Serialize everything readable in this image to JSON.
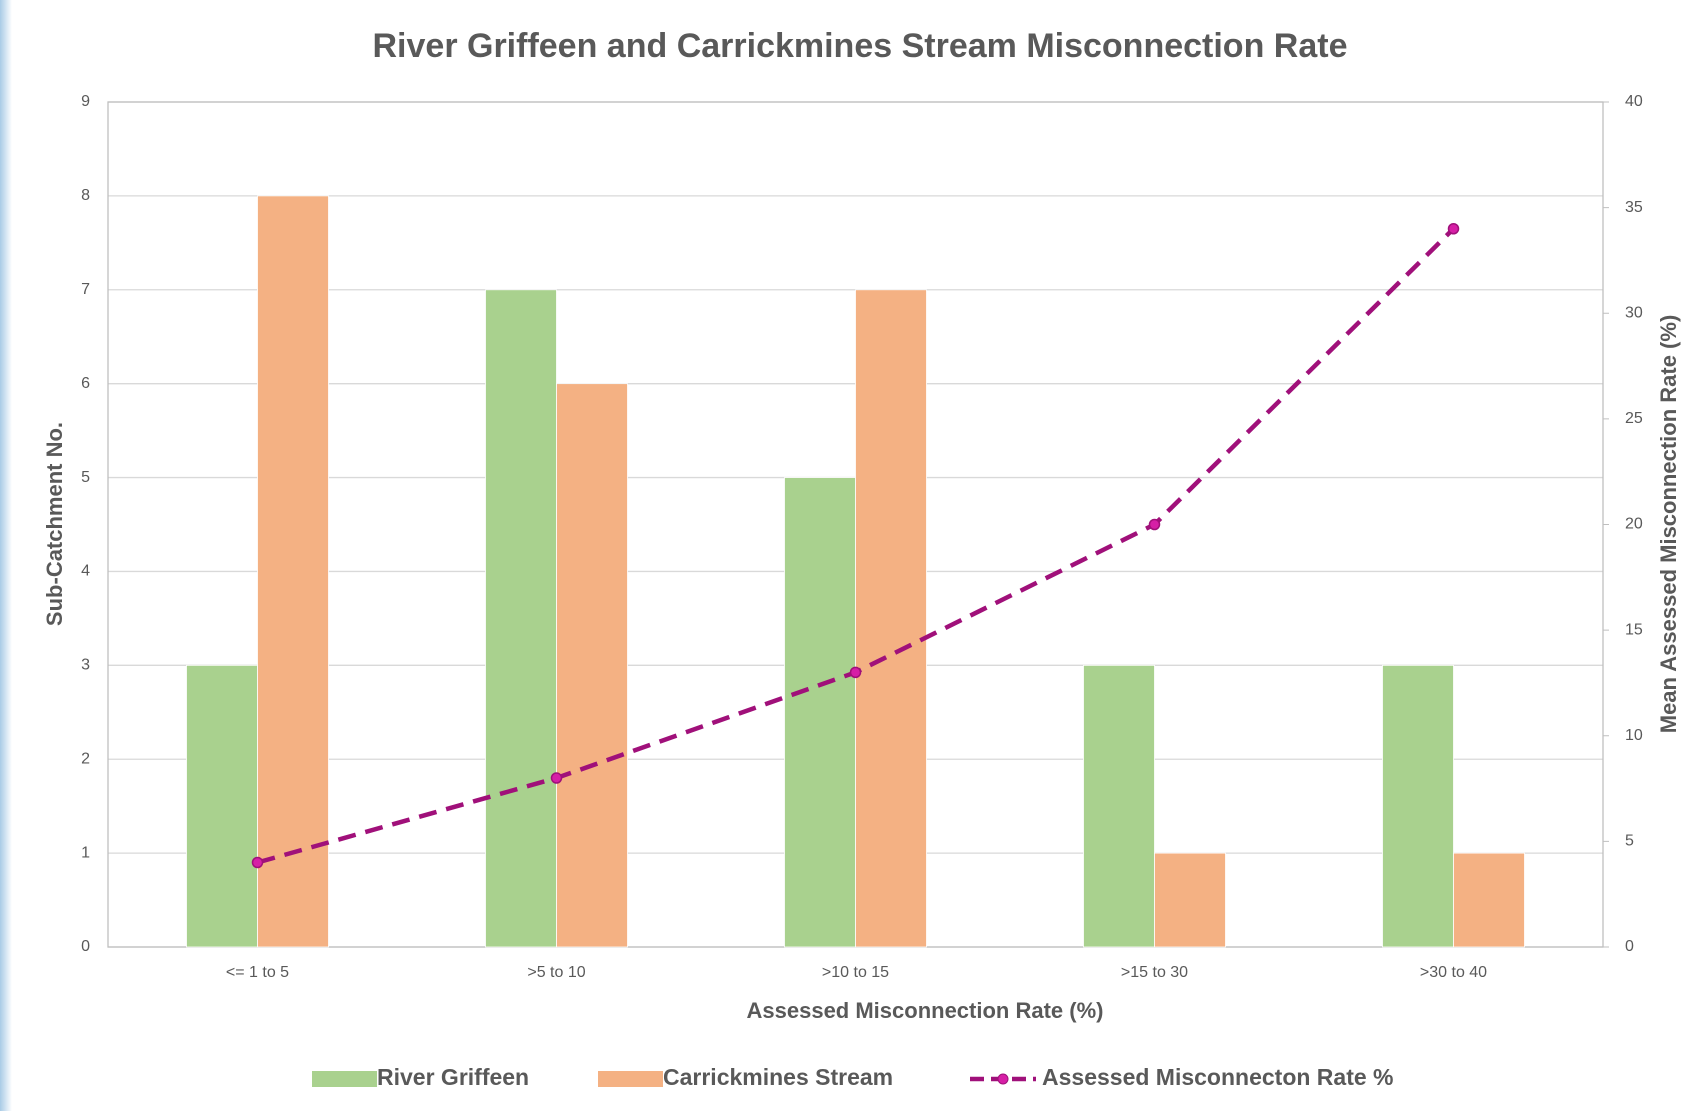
{
  "chart_data": {
    "type": "bar",
    "title": "River Griffeen and Carrickmines Stream Misconnection Rate",
    "x_label": "Assessed Misconnection Rate (%)",
    "y_label": "Sub-Catchment No.",
    "y2_label": "Mean Assessed Misconnection Rate  (%)",
    "categories": [
      "<= 1 to 5",
      ">5 to 10",
      ">10 to 15",
      ">15 to 30",
      ">30 to 40"
    ],
    "series": [
      {
        "name": "River Griffeen",
        "color": "#a9d18e",
        "values": [
          3,
          7,
          5,
          3,
          3
        ]
      },
      {
        "name": "Carrickmines Stream",
        "color": "#f4b183",
        "values": [
          8,
          6,
          7,
          1,
          1
        ]
      },
      {
        "name": "Assessed Misconnecton Rate %",
        "color": "#a0107a",
        "type": "line",
        "dashed": true,
        "axis": "y2",
        "values": [
          4,
          8,
          13,
          20,
          34
        ]
      }
    ],
    "ylim": [
      0,
      9
    ],
    "yticks": [
      0,
      1,
      2,
      3,
      4,
      5,
      6,
      7,
      8,
      9
    ],
    "y2lim": [
      0,
      40
    ],
    "y2ticks": [
      0,
      5,
      10,
      15,
      20,
      25,
      30,
      35,
      40
    ],
    "grid": true,
    "legend": "bottom"
  }
}
